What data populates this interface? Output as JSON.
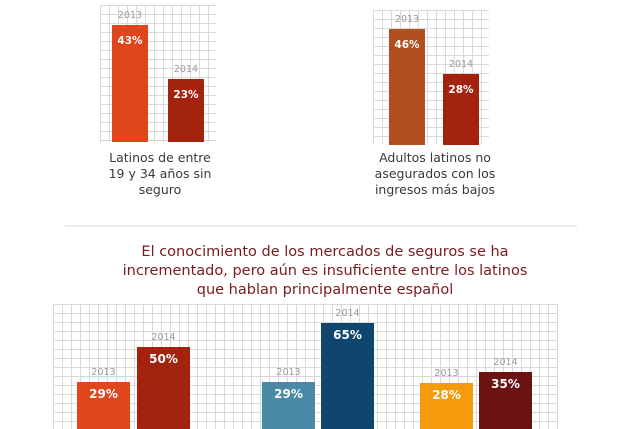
{
  "headline": {
    "line1": "El conocimiento de los mercados de seguros se ha",
    "line2": "incrementado, pero aún es insuficiente entre los latinos",
    "line3": "que hablan principalmente español"
  },
  "colors": {
    "orange_red": "#e0451c",
    "dark_red": "#a3230f",
    "rust": "#b24f1f",
    "teal": "#4a8aa6",
    "navy": "#10466e",
    "amber": "#f59a0b",
    "maroon": "#6b1313",
    "headline": "#7a1b1f"
  },
  "chart_data": [
    {
      "type": "bar",
      "title": "",
      "caption_lines": [
        "Latinos de entre",
        "19 y 34 años sin",
        "seguro"
      ],
      "categories": [
        "2013",
        "2014"
      ],
      "values": [
        43,
        23
      ],
      "data_labels": [
        "43%",
        "23%"
      ],
      "unit": "%",
      "grid": true
    },
    {
      "type": "bar",
      "title": "",
      "caption_lines": [
        "Adultos latinos no",
        "asegurados con los",
        "ingresos más bajos"
      ],
      "categories": [
        "2013",
        "2014"
      ],
      "values": [
        46,
        28
      ],
      "data_labels": [
        "46%",
        "28%"
      ],
      "unit": "%",
      "grid": true
    },
    {
      "type": "bar",
      "title": "El conocimiento de los mercados de seguros se ha incrementado, pero aún es insuficiente entre los latinos que hablan principalmente español",
      "groups": [
        {
          "categories": [
            "2013",
            "2014"
          ],
          "values": [
            29,
            50
          ],
          "data_labels": [
            "29%",
            "50%"
          ]
        },
        {
          "categories": [
            "2013",
            "2014"
          ],
          "values": [
            29,
            65
          ],
          "data_labels": [
            "29%",
            "65%"
          ]
        },
        {
          "categories": [
            "2013",
            "2014"
          ],
          "values": [
            28,
            35
          ],
          "data_labels": [
            "28%",
            "35%"
          ]
        }
      ],
      "unit": "%",
      "grid": true
    }
  ]
}
